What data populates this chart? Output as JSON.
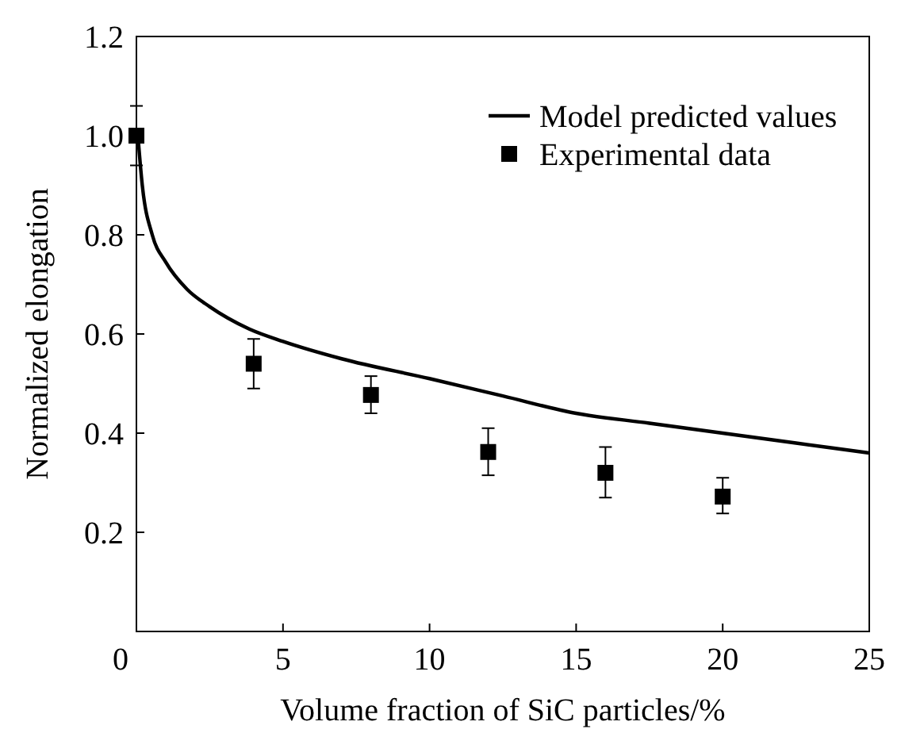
{
  "chart_data": {
    "type": "line",
    "xlabel": "Volume fraction of SiC particles/%",
    "ylabel": "Normalized elongation",
    "xlim": [
      0,
      25
    ],
    "ylim": [
      0,
      1.2
    ],
    "xticks": [
      0,
      5,
      10,
      15,
      20,
      25
    ],
    "yticks": [
      {
        "value": 0,
        "label": null
      },
      0.2,
      0.4,
      0.6,
      0.8,
      {
        "value": 1,
        "label": "1.0"
      },
      1.2
    ],
    "legend": "top right",
    "grid": false,
    "series": [
      {
        "name": "Model predicted values",
        "color": "#000000",
        "marker": "none",
        "line_style": "solid",
        "x": [
          0.05,
          0.2,
          0.54,
          1.0,
          1.73,
          2.5,
          3.85,
          5,
          7,
          10,
          12.5,
          15,
          17.5,
          20,
          22.5,
          25
        ],
        "values": [
          1.0,
          0.9,
          0.8,
          0.745,
          0.69,
          0.655,
          0.61,
          0.585,
          0.55,
          0.51,
          0.475,
          0.44,
          0.42,
          0.4,
          0.38,
          0.36
        ]
      },
      {
        "name": "Experimental data",
        "type": "scatter",
        "color": "#000000",
        "marker": "square",
        "x": [
          0,
          4,
          8,
          12,
          16,
          20
        ],
        "values": [
          1.0,
          0.54,
          0.477,
          0.362,
          0.32,
          0.272
        ],
        "errors": [
          [
            0.94,
            1.06
          ],
          [
            0.49,
            0.59
          ],
          [
            0.44,
            0.515
          ],
          [
            0.315,
            0.41
          ],
          [
            0.27,
            0.372
          ],
          [
            0.238,
            0.31
          ]
        ]
      }
    ]
  }
}
